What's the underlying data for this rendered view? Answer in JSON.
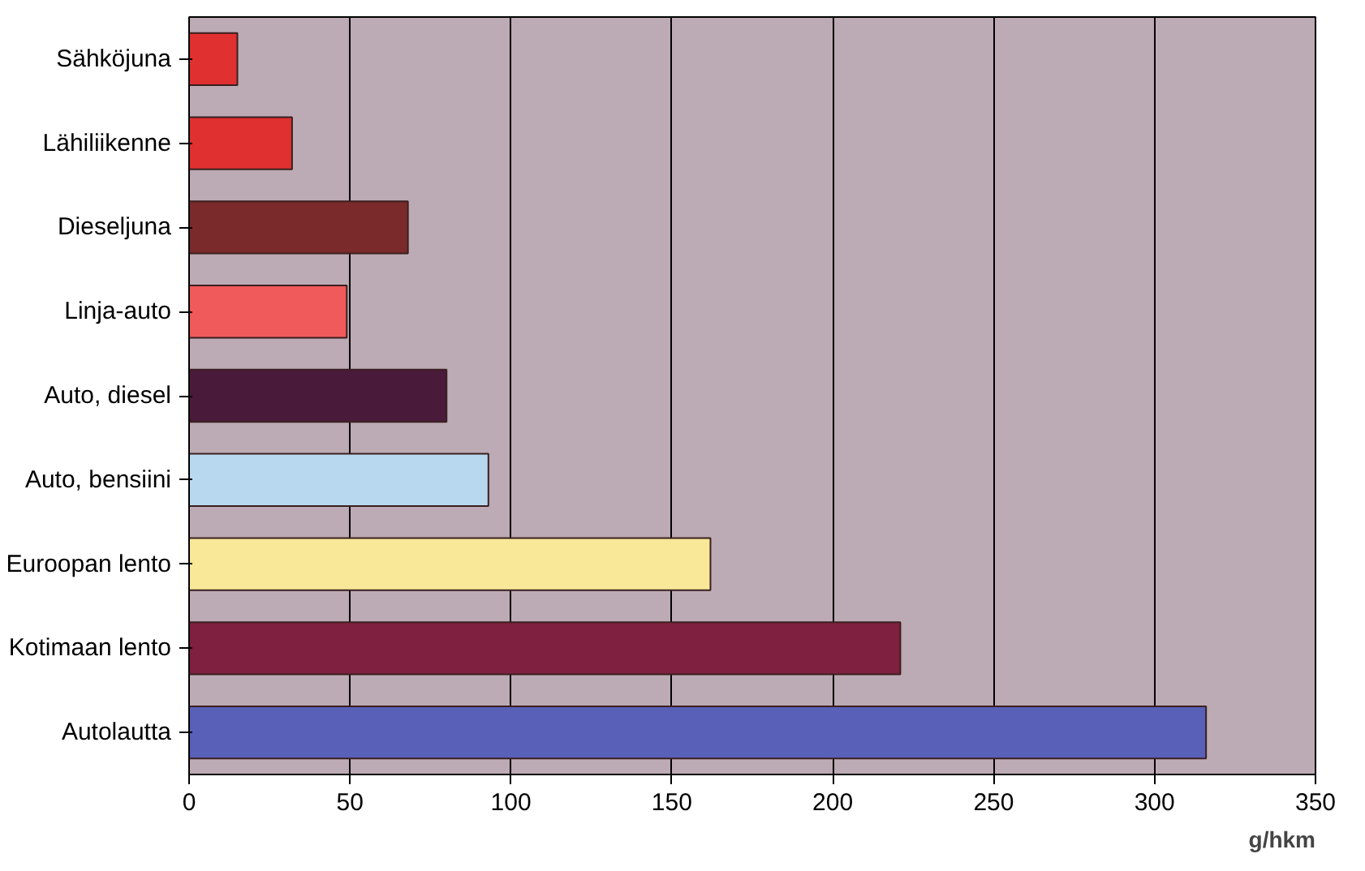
{
  "chart_data": {
    "type": "bar",
    "orientation": "horizontal",
    "xlabel": "g/hkm",
    "categories": [
      "Sähköjuna",
      "Lähiliikenne",
      "Dieseljuna",
      "Linja-auto",
      "Auto, diesel",
      "Auto, bensiini",
      "Euroopan lento",
      "Kotimaan lento",
      "Autolautta"
    ],
    "values": [
      15,
      32,
      68,
      49,
      80,
      93,
      162,
      221,
      316
    ],
    "colors": [
      "#e03030",
      "#e03030",
      "#7a2a2a",
      "#f05a5a",
      "#4a1a3a",
      "#b8d8f0",
      "#f8e898",
      "#802040",
      "#5860b8"
    ],
    "xlim": [
      0,
      350
    ],
    "xticks": [
      0,
      50,
      100,
      150,
      200,
      250,
      300,
      350
    ],
    "grid": "x"
  }
}
